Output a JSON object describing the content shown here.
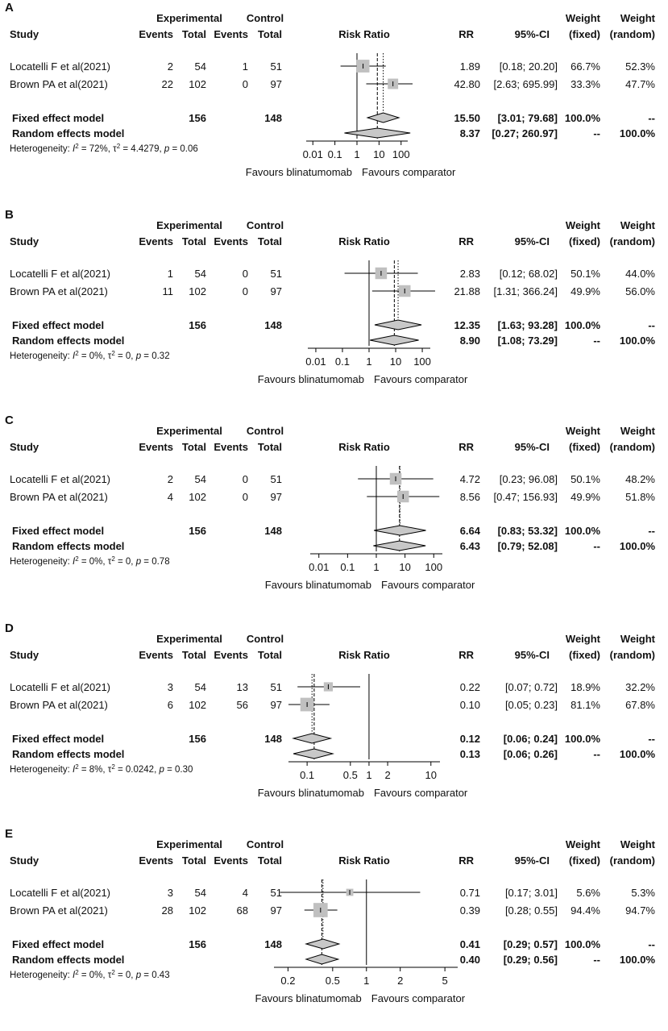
{
  "figure": {
    "headers": {
      "experimental": "Experimental",
      "control": "Control",
      "study": "Study",
      "events": "Events",
      "total": "Total",
      "risk_ratio": "Risk Ratio",
      "rr": "RR",
      "ci": "95%-CI",
      "weight": "Weight",
      "fixed": "(fixed)",
      "random": "(random)"
    },
    "favours_left": "Favours blinatumomab",
    "favours_right": "Favours comparator",
    "colors": {
      "box": "#c0c0c0",
      "diamond": "#c8c8c8",
      "line": "#000000"
    }
  },
  "chart_data": [
    {
      "type": "forest",
      "panel_label": "A",
      "title": "",
      "xlabel": "Risk Ratio",
      "axis_scale": "log",
      "xlim": [
        0.005,
        200
      ],
      "ticks": [
        0.01,
        0.1,
        1,
        10,
        100
      ],
      "tick_labels": [
        "0.01",
        "0.1",
        "1",
        "10",
        "100"
      ],
      "studies": [
        {
          "name": "Locatelli F et al(2021)",
          "exp_events": "2",
          "exp_total": "54",
          "ctrl_events": "1",
          "ctrl_total": "51",
          "rr_text": "1.89",
          "ci_text": "[0.18; 20.20]",
          "w_fixed": "66.7%",
          "w_random": "52.3%",
          "rr": 1.89,
          "lo": 0.18,
          "hi": 20.2,
          "weight": 66.7
        },
        {
          "name": "Brown PA et al(2021)",
          "exp_events": "22",
          "exp_total": "102",
          "ctrl_events": "0",
          "ctrl_total": "97",
          "rr_text": "42.80",
          "ci_text": "[2.63; 695.99]",
          "w_fixed": "33.3%",
          "w_random": "47.7%",
          "rr": 42.8,
          "lo": 2.63,
          "hi": 695.99,
          "weight": 33.3
        }
      ],
      "fixed": {
        "label": "Fixed effect model",
        "exp_total": "156",
        "ctrl_total": "148",
        "rr_text": "15.50",
        "ci_text": "[3.01; 79.68]",
        "w_fixed": "100.0%",
        "w_random": "--",
        "rr": 15.5,
        "lo": 3.01,
        "hi": 79.68
      },
      "random": {
        "label": "Random effects model",
        "rr_text": "8.37",
        "ci_text": "[0.27; 260.97]",
        "w_fixed": "--",
        "w_random": "100.0%",
        "rr": 8.37,
        "lo": 0.27,
        "hi": 260.97
      },
      "heterogeneity": {
        "prefix": "Heterogeneity: ",
        "i2": "72%",
        "tau2": "4.4279",
        "p": "0.06"
      }
    },
    {
      "type": "forest",
      "panel_label": "B",
      "title": "",
      "xlabel": "Risk Ratio",
      "axis_scale": "log",
      "xlim": [
        0.005,
        200
      ],
      "ticks": [
        0.01,
        0.1,
        1,
        10,
        100
      ],
      "tick_labels": [
        "0.01",
        "0.1",
        "1",
        "10",
        "100"
      ],
      "studies": [
        {
          "name": "Locatelli F et al(2021)",
          "exp_events": "1",
          "exp_total": "54",
          "ctrl_events": "0",
          "ctrl_total": "51",
          "rr_text": "2.83",
          "ci_text": "[0.12; 68.02]",
          "w_fixed": "50.1%",
          "w_random": "44.0%",
          "rr": 2.83,
          "lo": 0.12,
          "hi": 68.02,
          "weight": 50.1
        },
        {
          "name": "Brown PA et al(2021)",
          "exp_events": "11",
          "exp_total": "102",
          "ctrl_events": "0",
          "ctrl_total": "97",
          "rr_text": "21.88",
          "ci_text": "[1.31; 366.24]",
          "w_fixed": "49.9%",
          "w_random": "56.0%",
          "rr": 21.88,
          "lo": 1.31,
          "hi": 366.24,
          "weight": 49.9
        }
      ],
      "fixed": {
        "label": "Fixed effect model",
        "exp_total": "156",
        "ctrl_total": "148",
        "rr_text": "12.35",
        "ci_text": "[1.63; 93.28]",
        "w_fixed": "100.0%",
        "w_random": "--",
        "rr": 12.35,
        "lo": 1.63,
        "hi": 93.28
      },
      "random": {
        "label": "Random effects model",
        "rr_text": "8.90",
        "ci_text": "[1.08; 73.29]",
        "w_fixed": "--",
        "w_random": "100.0%",
        "rr": 8.9,
        "lo": 1.08,
        "hi": 73.29
      },
      "heterogeneity": {
        "prefix": "Heterogeneity: ",
        "i2": "0%",
        "tau2": "0",
        "p": "0.32"
      }
    },
    {
      "type": "forest",
      "panel_label": "C",
      "title": "",
      "xlabel": "Risk Ratio",
      "axis_scale": "log",
      "xlim": [
        0.005,
        200
      ],
      "ticks": [
        0.01,
        0.1,
        1,
        10,
        100
      ],
      "tick_labels": [
        "0.01",
        "0.1",
        "1",
        "10",
        "100"
      ],
      "studies": [
        {
          "name": "Locatelli F et al(2021)",
          "exp_events": "2",
          "exp_total": "54",
          "ctrl_events": "0",
          "ctrl_total": "51",
          "rr_text": "4.72",
          "ci_text": "[0.23; 96.08]",
          "w_fixed": "50.1%",
          "w_random": "48.2%",
          "rr": 4.72,
          "lo": 0.23,
          "hi": 96.08,
          "weight": 50.1
        },
        {
          "name": "Brown PA et al(2021)",
          "exp_events": "4",
          "exp_total": "102",
          "ctrl_events": "0",
          "ctrl_total": "97",
          "rr_text": "8.56",
          "ci_text": "[0.47; 156.93]",
          "w_fixed": "49.9%",
          "w_random": "51.8%",
          "rr": 8.56,
          "lo": 0.47,
          "hi": 156.93,
          "weight": 49.9
        }
      ],
      "fixed": {
        "label": "Fixed effect model",
        "exp_total": "156",
        "ctrl_total": "148",
        "rr_text": "6.64",
        "ci_text": "[0.83; 53.32]",
        "w_fixed": "100.0%",
        "w_random": "--",
        "rr": 6.64,
        "lo": 0.83,
        "hi": 53.32
      },
      "random": {
        "label": "Random effects model",
        "rr_text": "6.43",
        "ci_text": "[0.79; 52.08]",
        "w_fixed": "--",
        "w_random": "100.0%",
        "rr": 6.43,
        "lo": 0.79,
        "hi": 52.08
      },
      "heterogeneity": {
        "prefix": "Heterogeneity: ",
        "i2": "0%",
        "tau2": "0",
        "p": "0.78"
      }
    },
    {
      "type": "forest",
      "panel_label": "D",
      "title": "",
      "xlabel": "Risk Ratio",
      "axis_scale": "log",
      "xlim": [
        0.05,
        14
      ],
      "ticks": [
        0.1,
        0.5,
        1,
        2,
        10
      ],
      "tick_labels": [
        "0.1",
        "0.5",
        "1",
        "2",
        "10"
      ],
      "studies": [
        {
          "name": "Locatelli F et al(2021)",
          "exp_events": "3",
          "exp_total": "54",
          "ctrl_events": "13",
          "ctrl_total": "51",
          "rr_text": "0.22",
          "ci_text": "[0.07; 0.72]",
          "w_fixed": "18.9%",
          "w_random": "32.2%",
          "rr": 0.22,
          "lo": 0.07,
          "hi": 0.72,
          "weight": 18.9
        },
        {
          "name": "Brown PA et al(2021)",
          "exp_events": "6",
          "exp_total": "102",
          "ctrl_events": "56",
          "ctrl_total": "97",
          "rr_text": "0.10",
          "ci_text": "[0.05; 0.23]",
          "w_fixed": "81.1%",
          "w_random": "67.8%",
          "rr": 0.1,
          "lo": 0.05,
          "hi": 0.23,
          "weight": 81.1
        }
      ],
      "fixed": {
        "label": "Fixed effect model",
        "exp_total": "156",
        "ctrl_total": "148",
        "rr_text": "0.12",
        "ci_text": "[0.06; 0.24]",
        "w_fixed": "100.0%",
        "w_random": "--",
        "rr": 0.12,
        "lo": 0.06,
        "hi": 0.24
      },
      "random": {
        "label": "Random effects model",
        "rr_text": "0.13",
        "ci_text": "[0.06; 0.26]",
        "w_fixed": "--",
        "w_random": "100.0%",
        "rr": 0.13,
        "lo": 0.06,
        "hi": 0.26
      },
      "heterogeneity": {
        "prefix": "Heterogeneity: ",
        "i2": "8%",
        "tau2": "0.0242",
        "p": "0.30"
      }
    },
    {
      "type": "forest",
      "panel_label": "E",
      "title": "",
      "xlabel": "Risk Ratio",
      "axis_scale": "log",
      "xlim": [
        0.15,
        6.5
      ],
      "ticks": [
        0.2,
        0.5,
        1,
        2,
        5
      ],
      "tick_labels": [
        "0.2",
        "0.5",
        "1",
        "2",
        "5"
      ],
      "studies": [
        {
          "name": "Locatelli F et al(2021)",
          "exp_events": "3",
          "exp_total": "54",
          "ctrl_events": "4",
          "ctrl_total": "51",
          "rr_text": "0.71",
          "ci_text": "[0.17; 3.01]",
          "w_fixed": "5.6%",
          "w_random": "5.3%",
          "rr": 0.71,
          "lo": 0.17,
          "hi": 3.01,
          "weight": 5.6
        },
        {
          "name": "Brown PA et al(2021)",
          "exp_events": "28",
          "exp_total": "102",
          "ctrl_events": "68",
          "ctrl_total": "97",
          "rr_text": "0.39",
          "ci_text": "[0.28; 0.55]",
          "w_fixed": "94.4%",
          "w_random": "94.7%",
          "rr": 0.39,
          "lo": 0.28,
          "hi": 0.55,
          "weight": 94.4
        }
      ],
      "fixed": {
        "label": "Fixed effect model",
        "exp_total": "156",
        "ctrl_total": "148",
        "rr_text": "0.41",
        "ci_text": "[0.29; 0.57]",
        "w_fixed": "100.0%",
        "w_random": "--",
        "rr": 0.41,
        "lo": 0.29,
        "hi": 0.57
      },
      "random": {
        "label": "Random effects model",
        "rr_text": "0.40",
        "ci_text": "[0.29; 0.56]",
        "w_fixed": "--",
        "w_random": "100.0%",
        "rr": 0.4,
        "lo": 0.29,
        "hi": 0.56
      },
      "heterogeneity": {
        "prefix": "Heterogeneity: ",
        "i2": "0%",
        "tau2": "0",
        "p": "0.43"
      }
    }
  ]
}
